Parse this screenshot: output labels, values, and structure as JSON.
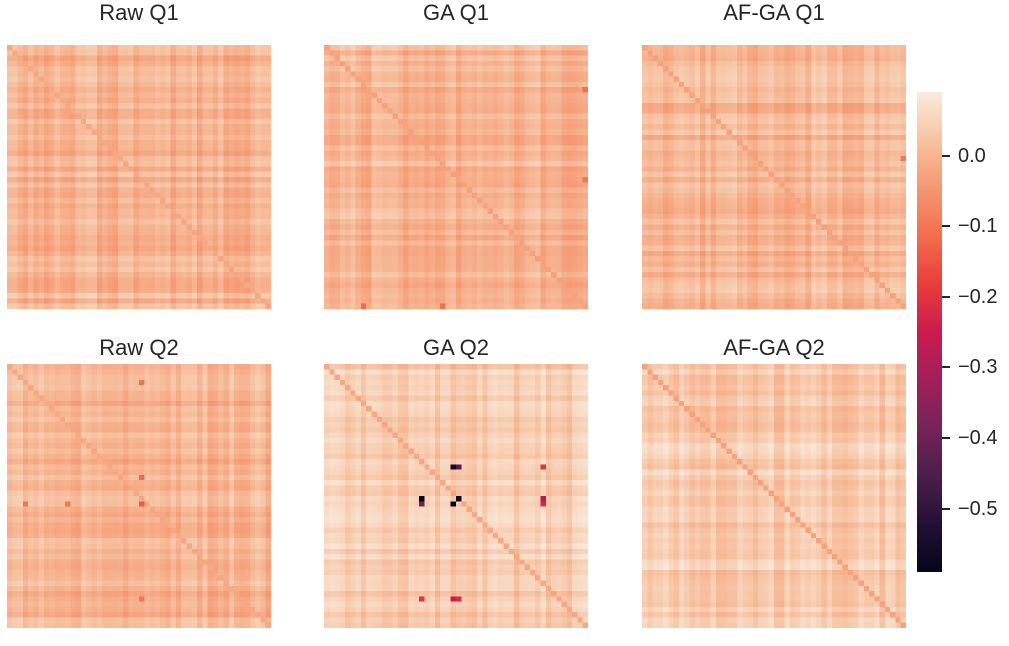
{
  "chart_data": [
    {
      "type": "heatmap",
      "title": "Raw Q1",
      "matrix_size": 50,
      "vmin": -0.59,
      "vmax": 0.09,
      "diagonal_value": -0.02,
      "pattern": "mostly light peach, values roughly -0.06 to 0.06",
      "strong_cells": []
    },
    {
      "type": "heatmap",
      "title": "GA Q1",
      "matrix_size": 50,
      "vmin": -0.59,
      "vmax": 0.09,
      "diagonal_value": -0.03,
      "pattern": "peach stripes, a few slightly stronger cells near -0.1 to -0.12",
      "strong_cells": [
        {
          "row": 49,
          "col": 7,
          "value": -0.12
        },
        {
          "row": 49,
          "col": 22,
          "value": -0.11
        },
        {
          "row": 8,
          "col": 49,
          "value": -0.11
        },
        {
          "row": 25,
          "col": 49,
          "value": -0.1
        }
      ]
    },
    {
      "type": "heatmap",
      "title": "AF-GA Q1",
      "matrix_size": 50,
      "vmin": -0.59,
      "vmax": 0.09,
      "diagonal_value": -0.03,
      "pattern": "peach stripes, values roughly -0.08 to 0.06",
      "strong_cells": [
        {
          "row": 21,
          "col": 49,
          "value": -0.1
        }
      ]
    },
    {
      "type": "heatmap",
      "title": "Raw Q2",
      "matrix_size": 50,
      "vmin": -0.59,
      "vmax": 0.09,
      "diagonal_value": -0.02,
      "pattern": "peach with stronger stripe at row 26 and column 25",
      "strong_cells": [
        {
          "row": 26,
          "col": 3,
          "value": -0.1
        },
        {
          "row": 26,
          "col": 11,
          "value": -0.1
        },
        {
          "row": 26,
          "col": 25,
          "value": -0.14
        },
        {
          "row": 3,
          "col": 25,
          "value": -0.11
        },
        {
          "row": 21,
          "col": 25,
          "value": -0.12
        },
        {
          "row": 44,
          "col": 25,
          "value": -0.1
        }
      ]
    },
    {
      "type": "heatmap",
      "title": "GA Q2",
      "matrix_size": 50,
      "vmin": -0.59,
      "vmax": 0.09,
      "diagonal_value": -0.02,
      "pattern": "light peach with bands at rows 19, 25, 44 and columns 18, 24, 41",
      "strong_cells": [
        {
          "row": 19,
          "col": 24,
          "value": -0.56
        },
        {
          "row": 19,
          "col": 25,
          "value": -0.45
        },
        {
          "row": 25,
          "col": 18,
          "value": -0.58
        },
        {
          "row": 26,
          "col": 18,
          "value": -0.4
        },
        {
          "row": 25,
          "col": 25,
          "value": -0.57
        },
        {
          "row": 26,
          "col": 24,
          "value": -0.59
        },
        {
          "row": 19,
          "col": 41,
          "value": -0.2
        },
        {
          "row": 25,
          "col": 41,
          "value": -0.3
        },
        {
          "row": 26,
          "col": 41,
          "value": -0.22
        },
        {
          "row": 44,
          "col": 18,
          "value": -0.2
        },
        {
          "row": 44,
          "col": 24,
          "value": -0.25
        },
        {
          "row": 44,
          "col": 25,
          "value": -0.22
        }
      ]
    },
    {
      "type": "heatmap",
      "title": "AF-GA Q2",
      "matrix_size": 50,
      "vmin": -0.59,
      "vmax": 0.09,
      "diagonal_value": -0.03,
      "pattern": "light peach with faint band at row 25 and column 24",
      "strong_cells": []
    }
  ],
  "colorbar": {
    "vmin": -0.59,
    "vmax": 0.09,
    "colormap": "rocket",
    "ticks": [
      {
        "value": 0.0,
        "label": "0.0"
      },
      {
        "value": -0.1,
        "label": "−0.1"
      },
      {
        "value": -0.2,
        "label": "−0.2"
      },
      {
        "value": -0.3,
        "label": "−0.3"
      },
      {
        "value": -0.4,
        "label": "−0.4"
      },
      {
        "value": -0.5,
        "label": "−0.5"
      }
    ]
  }
}
